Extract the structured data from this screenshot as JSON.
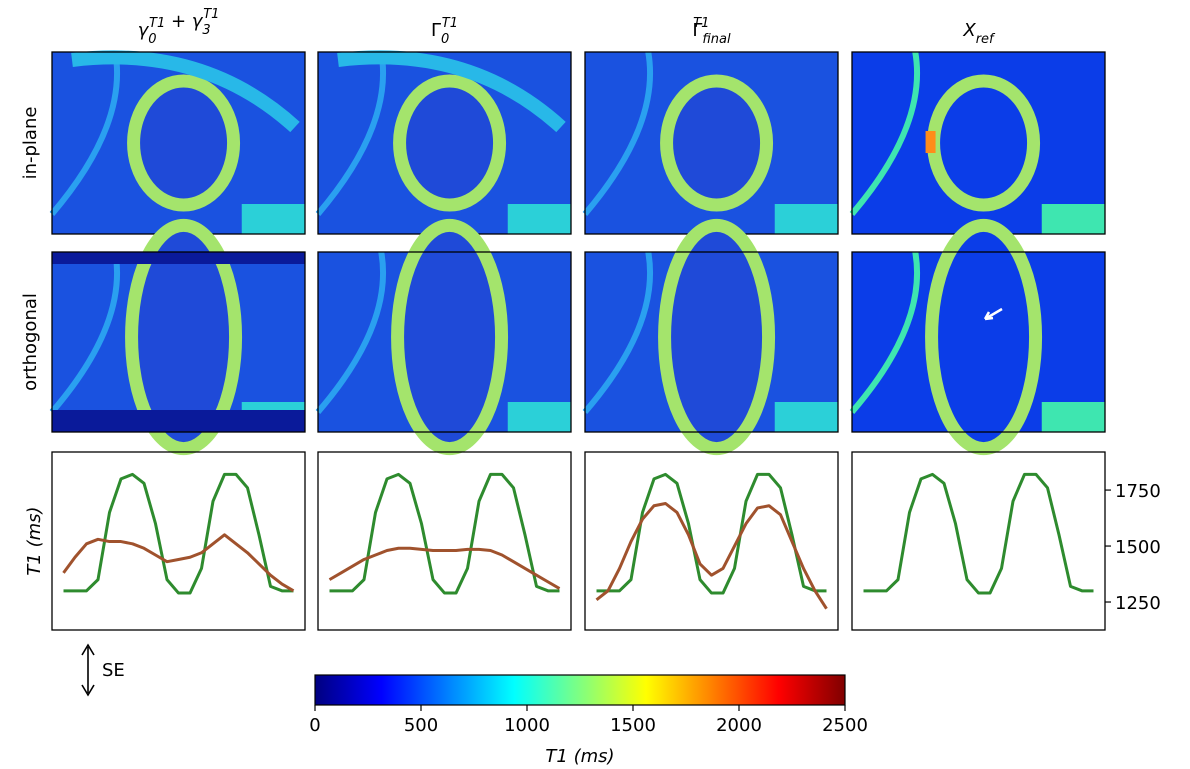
{
  "column_titles": [
    [
      {
        "text": "γ",
        "sub": "0",
        "sup": "T1"
      },
      {
        "text": " + "
      },
      {
        "text": "γ",
        "sub": "3",
        "sup": "T1"
      }
    ],
    [
      {
        "text": "Γ",
        "sub": "0",
        "sup": "T1"
      }
    ],
    [
      {
        "text": "Γ",
        "sub": "final",
        "sup": "T1"
      }
    ],
    [
      {
        "text": "X",
        "sub": "ref"
      }
    ]
  ],
  "row_labels": [
    "in-plane",
    "orthogonal"
  ],
  "annotation": "SE",
  "chart_data": [
    {
      "type": "line",
      "ylabel": "T1 (ms)",
      "x": [
        0,
        1,
        2,
        3,
        4,
        5,
        6,
        7,
        8,
        9,
        10,
        11,
        12,
        13,
        14,
        15,
        16,
        17,
        18,
        19,
        20
      ],
      "xlim": [
        -1,
        21
      ],
      "ylim": [
        1125,
        1920
      ],
      "yticks": [
        1250,
        1500,
        1750
      ],
      "panels": [
        {
          "series": [
            {
              "color": "#2e8b2e",
              "values": [
                1300,
                1300,
                1300,
                1350,
                1650,
                1800,
                1820,
                1780,
                1600,
                1350,
                1290,
                1290,
                1400,
                1700,
                1820,
                1820,
                1760,
                1550,
                1320,
                1300,
                1300
              ]
            },
            {
              "color": "#a0522d",
              "values": [
                1380,
                1450,
                1510,
                1530,
                1520,
                1520,
                1510,
                1490,
                1460,
                1430,
                1440,
                1450,
                1470,
                1510,
                1550,
                1510,
                1470,
                1420,
                1370,
                1330,
                1300
              ]
            }
          ]
        },
        {
          "series": [
            {
              "color": "#2e8b2e",
              "values": [
                1300,
                1300,
                1300,
                1350,
                1650,
                1800,
                1820,
                1780,
                1600,
                1350,
                1290,
                1290,
                1400,
                1700,
                1820,
                1820,
                1760,
                1550,
                1320,
                1300,
                1300
              ]
            },
            {
              "color": "#a0522d",
              "values": [
                1350,
                1380,
                1410,
                1440,
                1460,
                1480,
                1490,
                1490,
                1485,
                1480,
                1480,
                1480,
                1485,
                1485,
                1480,
                1460,
                1430,
                1400,
                1370,
                1340,
                1310
              ]
            }
          ]
        },
        {
          "series": [
            {
              "color": "#2e8b2e",
              "values": [
                1300,
                1300,
                1300,
                1350,
                1650,
                1800,
                1820,
                1780,
                1600,
                1350,
                1290,
                1290,
                1400,
                1700,
                1820,
                1820,
                1760,
                1550,
                1320,
                1300,
                1300
              ]
            },
            {
              "color": "#a0522d",
              "values": [
                1260,
                1300,
                1400,
                1520,
                1620,
                1680,
                1690,
                1650,
                1550,
                1420,
                1370,
                1400,
                1500,
                1600,
                1670,
                1680,
                1640,
                1520,
                1400,
                1300,
                1220
              ]
            }
          ]
        },
        {
          "series": [
            {
              "color": "#2e8b2e",
              "values": [
                1300,
                1300,
                1300,
                1350,
                1650,
                1800,
                1820,
                1780,
                1600,
                1350,
                1290,
                1290,
                1400,
                1700,
                1820,
                1820,
                1760,
                1550,
                1320,
                1300,
                1300
              ]
            }
          ]
        }
      ]
    },
    {
      "type": "colorbar",
      "xlabel": "T1 (ms)",
      "xlim": [
        0,
        2500
      ],
      "xticks": [
        0,
        500,
        1000,
        1500,
        2000,
        2500
      ],
      "colormap": [
        "#000080",
        "#0000ff",
        "#0080ff",
        "#00ffff",
        "#80ff80",
        "#ffff00",
        "#ff8000",
        "#ff0000",
        "#800000"
      ]
    }
  ]
}
